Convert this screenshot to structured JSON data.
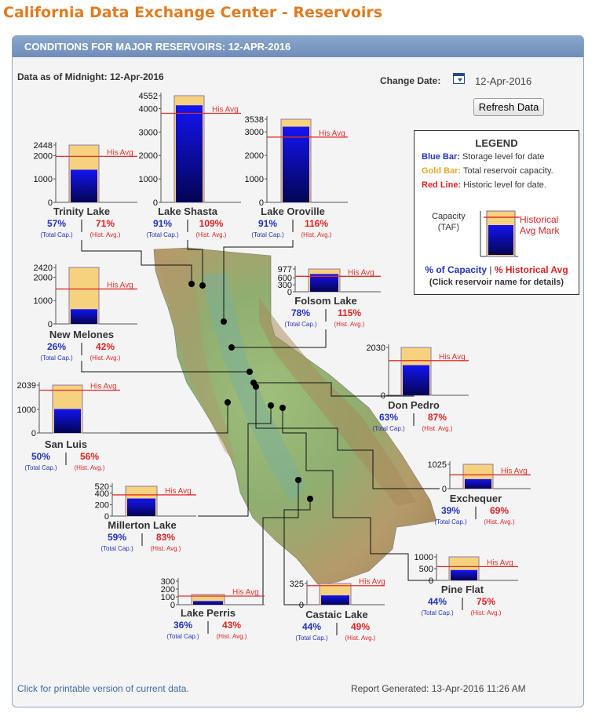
{
  "page_title": "California Data Exchange Center - Reservoirs",
  "panel": {
    "header": "CONDITIONS FOR MAJOR RESERVOIRS: 12-APR-2016",
    "data_as_of": "Data as of Midnight: 12-Apr-2016",
    "change_date_label": "Change Date:",
    "change_date_value": "12-Apr-2016",
    "refresh_label": "Refresh Data",
    "printable_link": "Click for printable version of current data.",
    "report_generated": "Report Generated: 13-Apr-2016 11:26 AM"
  },
  "legend": {
    "title": "LEGEND",
    "blue_label": "Blue Bar:",
    "blue_text": "Storage level for date",
    "gold_label": "Gold Bar:",
    "gold_text": "Total reservoir capacity.",
    "red_label": "Red Line:",
    "red_text": "Historic level for date.",
    "capacity_label": "Capacity",
    "capacity_unit": "(TAF)",
    "hist_mark_line1": "Historical",
    "hist_mark_line2": "Avg Mark",
    "pct_capacity": "% of Capacity",
    "separator": "|",
    "pct_hist": "% Historical Avg",
    "click_note": "(Click reservoir name for details)"
  },
  "colors": {
    "storage_blue": "#0a0ad8",
    "capacity_gold": "#f7d27e",
    "hist_red": "#e0302a",
    "pct_cap_text": "#2233bb",
    "pct_hist_text": "#dd2222"
  },
  "chart_data": {
    "type": "bar",
    "units": "TAF",
    "hist_avg_label": "His Avg",
    "total_cap_label": "(Total Cap.)",
    "hist_avg_small_label": "(Hist. Avg.)",
    "reservoirs": [
      {
        "name": "Trinity Lake",
        "capacity": 2448,
        "storage": 1395,
        "hist_avg": 1965,
        "pct_capacity": "57%",
        "pct_hist": "71%",
        "ticks": [
          "2448",
          "2000",
          "1000",
          "0"
        ]
      },
      {
        "name": "Lake Shasta",
        "capacity": 4552,
        "storage": 4142,
        "hist_avg": 3800,
        "pct_capacity": "91%",
        "pct_hist": "109%",
        "ticks": [
          "4552",
          "4000",
          "3000",
          "2000",
          "1000",
          "0"
        ]
      },
      {
        "name": "Lake Oroville",
        "capacity": 3538,
        "storage": 3220,
        "hist_avg": 2776,
        "pct_capacity": "91%",
        "pct_hist": "116%",
        "ticks": [
          "3538",
          "3000",
          "2000",
          "1000",
          "0"
        ]
      },
      {
        "name": "New Melones",
        "capacity": 2420,
        "storage": 629,
        "hist_avg": 1498,
        "pct_capacity": "26%",
        "pct_hist": "42%",
        "ticks": [
          "2420",
          "2000",
          "1000",
          "0"
        ]
      },
      {
        "name": "Folsom Lake",
        "capacity": 977,
        "storage": 762,
        "hist_avg": 663,
        "pct_capacity": "78%",
        "pct_hist": "115%",
        "ticks": [
          "977",
          "600",
          "300",
          "0"
        ]
      },
      {
        "name": "Don Pedro",
        "capacity": 2030,
        "storage": 1279,
        "hist_avg": 1470,
        "pct_capacity": "63%",
        "pct_hist": "87%",
        "ticks": [
          "2030",
          "0"
        ]
      },
      {
        "name": "San Luis",
        "capacity": 2039,
        "storage": 1020,
        "hist_avg": 1821,
        "pct_capacity": "50%",
        "pct_hist": "56%",
        "ticks": [
          "2039",
          "1000",
          "0"
        ]
      },
      {
        "name": "Exchequer",
        "capacity": 1025,
        "storage": 400,
        "hist_avg": 580,
        "pct_capacity": "39%",
        "pct_hist": "69%",
        "ticks": [
          "1025",
          "0"
        ]
      },
      {
        "name": "Millerton Lake",
        "capacity": 520,
        "storage": 307,
        "hist_avg": 370,
        "pct_capacity": "59%",
        "pct_hist": "83%",
        "ticks": [
          "520",
          "400",
          "200",
          "0"
        ]
      },
      {
        "name": "Pine Flat",
        "capacity": 1000,
        "storage": 440,
        "hist_avg": 587,
        "pct_capacity": "44%",
        "pct_hist": "75%",
        "ticks": [
          "1000",
          "500",
          "0"
        ]
      },
      {
        "name": "Lake Perris",
        "capacity": 131,
        "storage": 47,
        "hist_avg": 110,
        "pct_capacity": "36%",
        "pct_hist": "43%",
        "ticks": [
          "300",
          "200",
          "100",
          "0"
        ]
      },
      {
        "name": "Castaic Lake",
        "capacity": 325,
        "storage": 143,
        "hist_avg": 292,
        "pct_capacity": "44%",
        "pct_hist": "49%",
        "ticks": [
          "325",
          "0"
        ]
      }
    ]
  }
}
